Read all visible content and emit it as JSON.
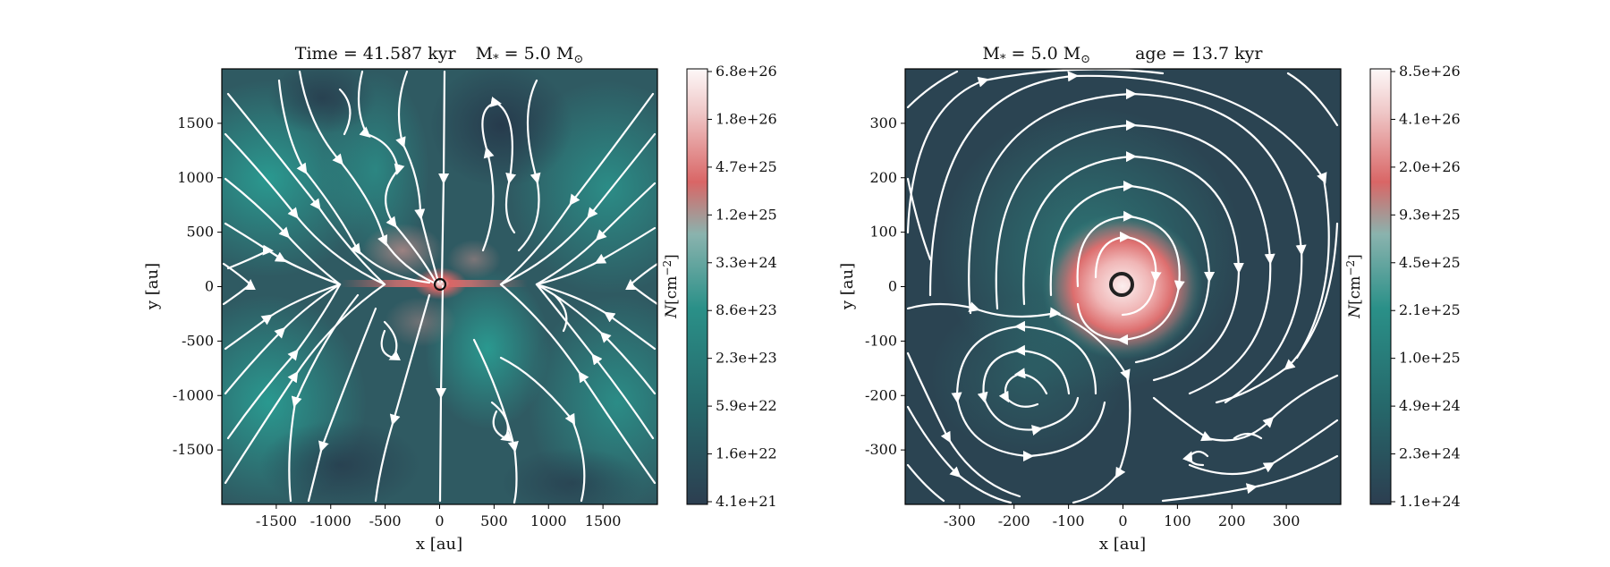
{
  "chart_data": [
    {
      "type": "heatmap",
      "title_parts": [
        "Time = 41.587 kyr",
        "M",
        "*",
        " = 5.0 M",
        "⊙"
      ],
      "xlabel": "x [au]",
      "ylabel": "y [au]",
      "xlim": [
        -2000,
        2000
      ],
      "ylim": [
        -2000,
        2000
      ],
      "xticks": [
        -1500,
        -1000,
        -500,
        0,
        500,
        1000,
        1500
      ],
      "yticks": [
        -1500,
        -1000,
        -500,
        0,
        500,
        1000,
        1500
      ],
      "xtick_labels": [
        "-1500",
        "-1000",
        "-500",
        "0",
        "500",
        "1000",
        "1500"
      ],
      "ytick_labels": [
        "-1500",
        "-1000",
        "-500",
        "0",
        "500",
        "1000",
        "1500"
      ],
      "colorbar": {
        "label_main": "N",
        "label_unit": "[cm",
        "label_exp": "−2",
        "label_close": "]",
        "scale": "log",
        "tick_labels": [
          "6.8e+26",
          "1.8e+26",
          "4.7e+25",
          "1.2e+25",
          "3.3e+24",
          "8.6e+23",
          "2.3e+23",
          "5.9e+22",
          "1.6e+22",
          "4.1e+21"
        ]
      },
      "overlay": "streamlines",
      "features": "edge-on disk along y=0 with hourglass field geometry"
    },
    {
      "type": "heatmap",
      "title_parts": [
        "M",
        "*",
        " = 5.0 M",
        "⊙",
        "age = 13.7 kyr"
      ],
      "xlabel": "x [au]",
      "ylabel": "y [au]",
      "xlim": [
        -400,
        400
      ],
      "ylim": [
        -400,
        400
      ],
      "xticks": [
        -300,
        -200,
        -100,
        0,
        100,
        200,
        300
      ],
      "yticks": [
        -300,
        -200,
        -100,
        0,
        100,
        200,
        300
      ],
      "xtick_labels": [
        "-300",
        "-200",
        "-100",
        "0",
        "100",
        "200",
        "300"
      ],
      "ytick_labels": [
        "-300",
        "-200",
        "-100",
        "0",
        "100",
        "200",
        "300"
      ],
      "colorbar": {
        "label_main": "N",
        "label_unit": "[cm",
        "label_exp": "−2",
        "label_close": "]",
        "scale": "log",
        "tick_labels": [
          "8.5e+26",
          "4.1e+26",
          "2.0e+26",
          "9.3e+25",
          "4.5e+25",
          "2.1e+25",
          "1.0e+25",
          "4.9e+24",
          "2.3e+24",
          "1.1e+24"
        ]
      },
      "overlay": "streamlines",
      "features": "face-on dense clump near origin with swirling flow"
    }
  ],
  "colors": {
    "low": "#2c3e50",
    "mid": "#2a9088",
    "high": "#d96666",
    "top": "#fdf6f6",
    "stream": "#ffffff"
  }
}
